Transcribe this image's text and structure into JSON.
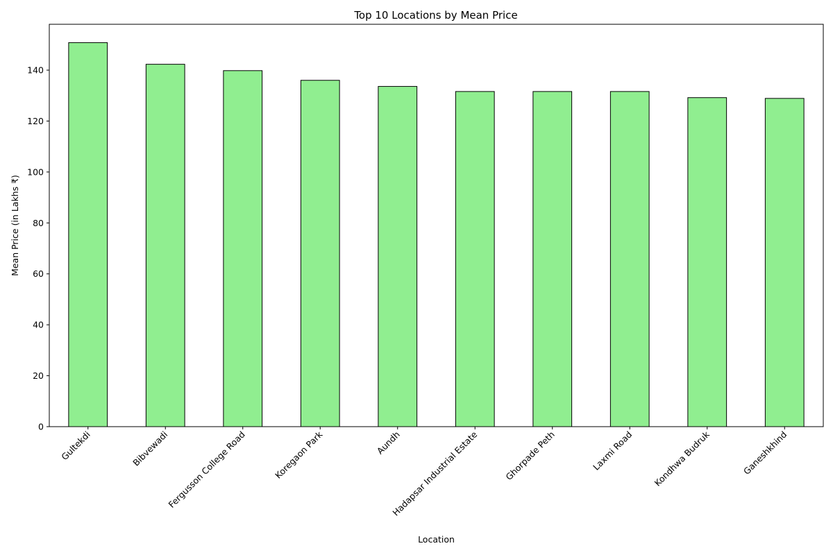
{
  "chart_data": {
    "type": "bar",
    "title": "Top 10 Locations by Mean Price",
    "xlabel": "Location",
    "ylabel": "Mean Price (in Lakhs ₹)",
    "categories": [
      "Gultekdi",
      "Bibvewadi",
      "Fergusson College Road",
      "Koregaon Park",
      "Aundh",
      "Hadapsar Industrial Estate",
      "Ghorpade Peth",
      "Laxmi Road",
      "Kondhwa Budruk",
      "Ganeshkhind"
    ],
    "values": [
      150.8,
      142.3,
      139.8,
      136.0,
      133.6,
      131.6,
      131.6,
      131.6,
      129.2,
      128.9
    ],
    "ylim": [
      0,
      158
    ],
    "yticks": [
      0,
      20,
      40,
      60,
      80,
      100,
      120,
      140
    ],
    "grid": false,
    "bar_color": "#90ee90",
    "edge_color": "#000000"
  }
}
